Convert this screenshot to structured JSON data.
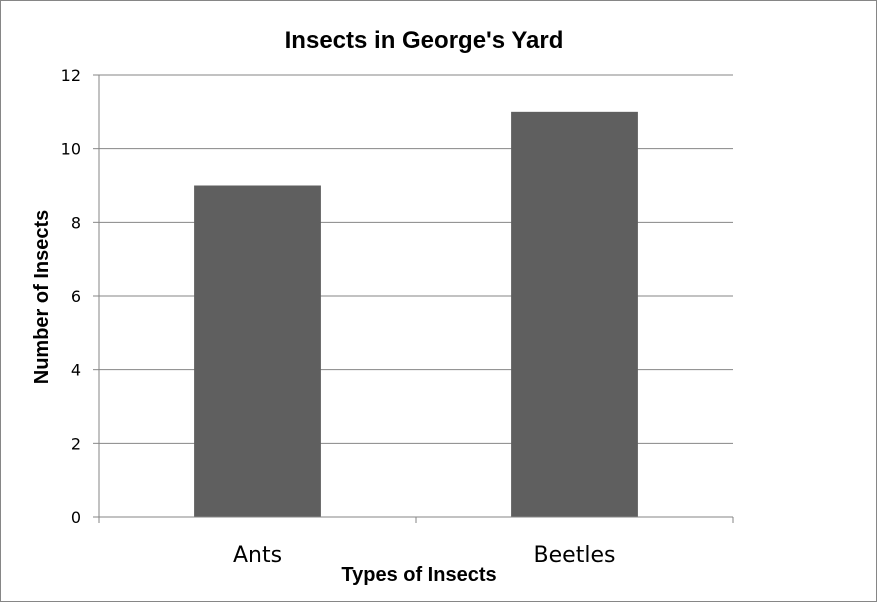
{
  "chart_data": {
    "type": "bar",
    "title": "Insects in George's Yard",
    "xlabel": "Types of Insects",
    "ylabel": "Number of Insects",
    "categories": [
      "Ants",
      "Beetles"
    ],
    "values": [
      9,
      11
    ],
    "ylim": [
      0,
      12
    ],
    "yticks": [
      "0",
      "2",
      "4",
      "6",
      "8",
      "10",
      "12"
    ],
    "grid": true,
    "legend": "none",
    "bar_color": "#5f5f5f",
    "grid_color": "#868686"
  }
}
